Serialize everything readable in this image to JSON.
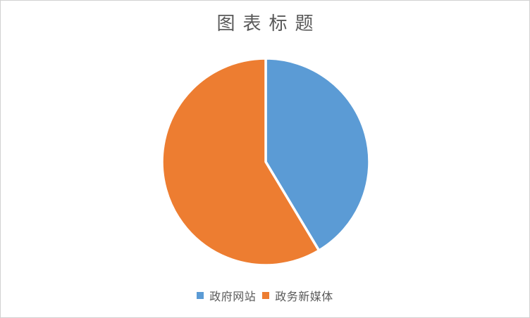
{
  "frame": {
    "background_color": "#ffffff",
    "border_color": "#d1d1d1"
  },
  "chart_data": {
    "type": "pie",
    "title": "图表标题",
    "categories": [
      "政府网站",
      "政务新媒体"
    ],
    "values": [
      41.4,
      58.6
    ],
    "colors": [
      "#5B9BD5",
      "#ED7D31"
    ],
    "start_angle_deg": 0,
    "direction": "clockwise",
    "slice_border_color": "#ffffff",
    "legend_position": "bottom",
    "title_color": "#595959",
    "legend_text_color": "#595959",
    "legend": [
      "政府网站",
      "政务新媒体"
    ]
  }
}
